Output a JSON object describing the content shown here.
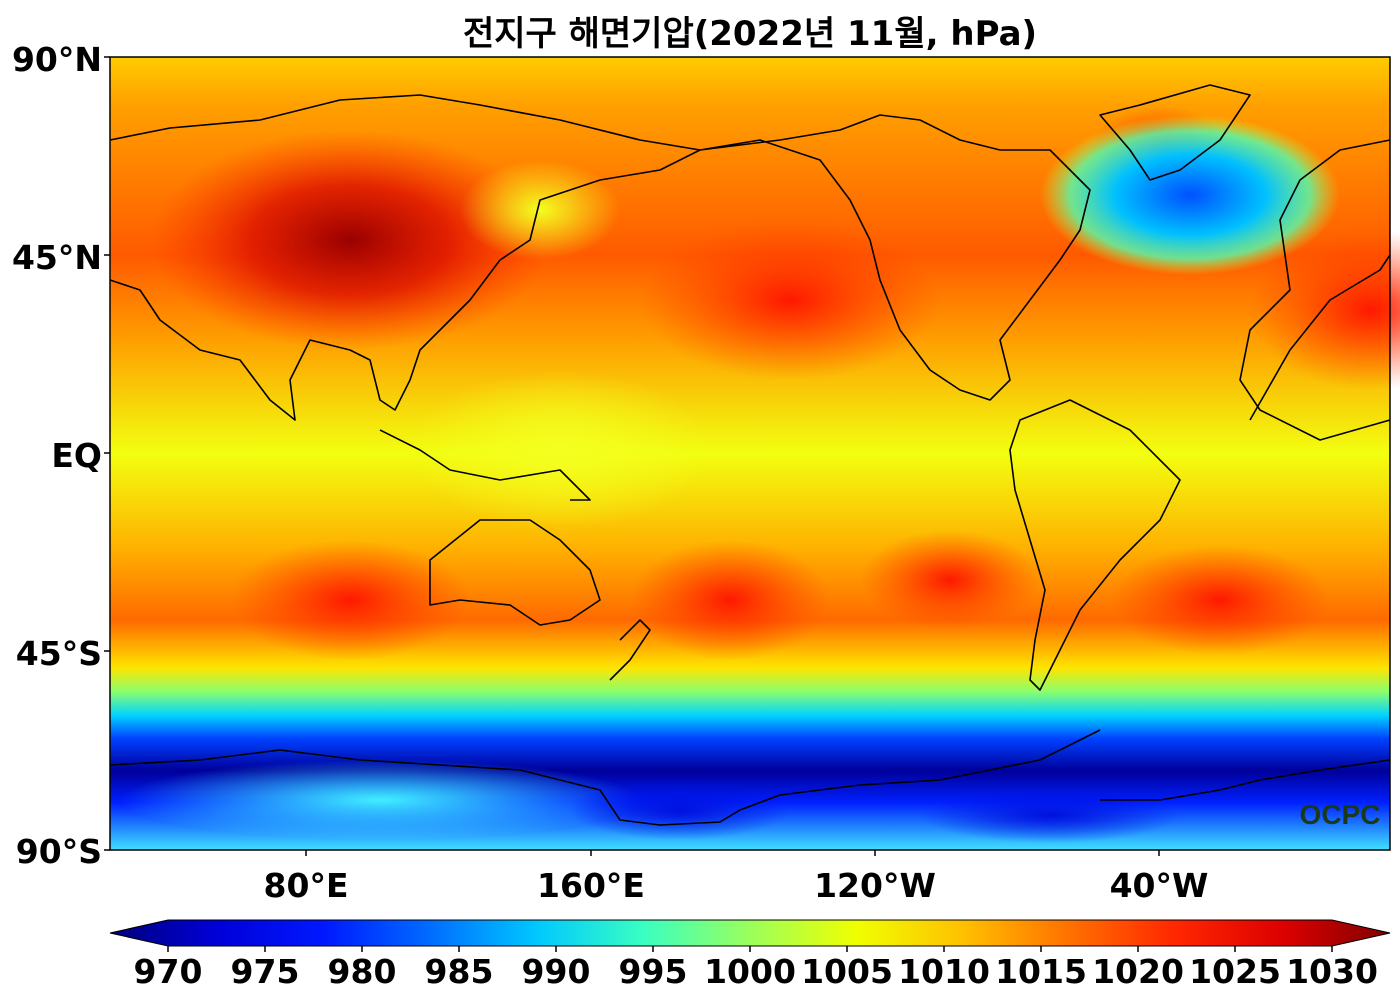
{
  "title": "전지구 해면기압(2022년 11월, hPa)",
  "y_ticks": [
    "90°N",
    "45°N",
    "EQ",
    "45°S",
    "90°S"
  ],
  "x_ticks": [
    "80°E",
    "160°E",
    "120°W",
    "40°W"
  ],
  "colorbar": {
    "ticks": [
      "970",
      "975",
      "980",
      "985",
      "990",
      "995",
      "1000",
      "1005",
      "1010",
      "1015",
      "1020",
      "1025",
      "1030"
    ],
    "colors": [
      "#00007a",
      "#0000d8",
      "#0018ff",
      "#006cff",
      "#00c8ff",
      "#39ffc2",
      "#9bff5c",
      "#f0ff00",
      "#ffc000",
      "#ff7000",
      "#ff2600",
      "#dc0000",
      "#800000"
    ]
  },
  "watermark": "OCPC"
}
